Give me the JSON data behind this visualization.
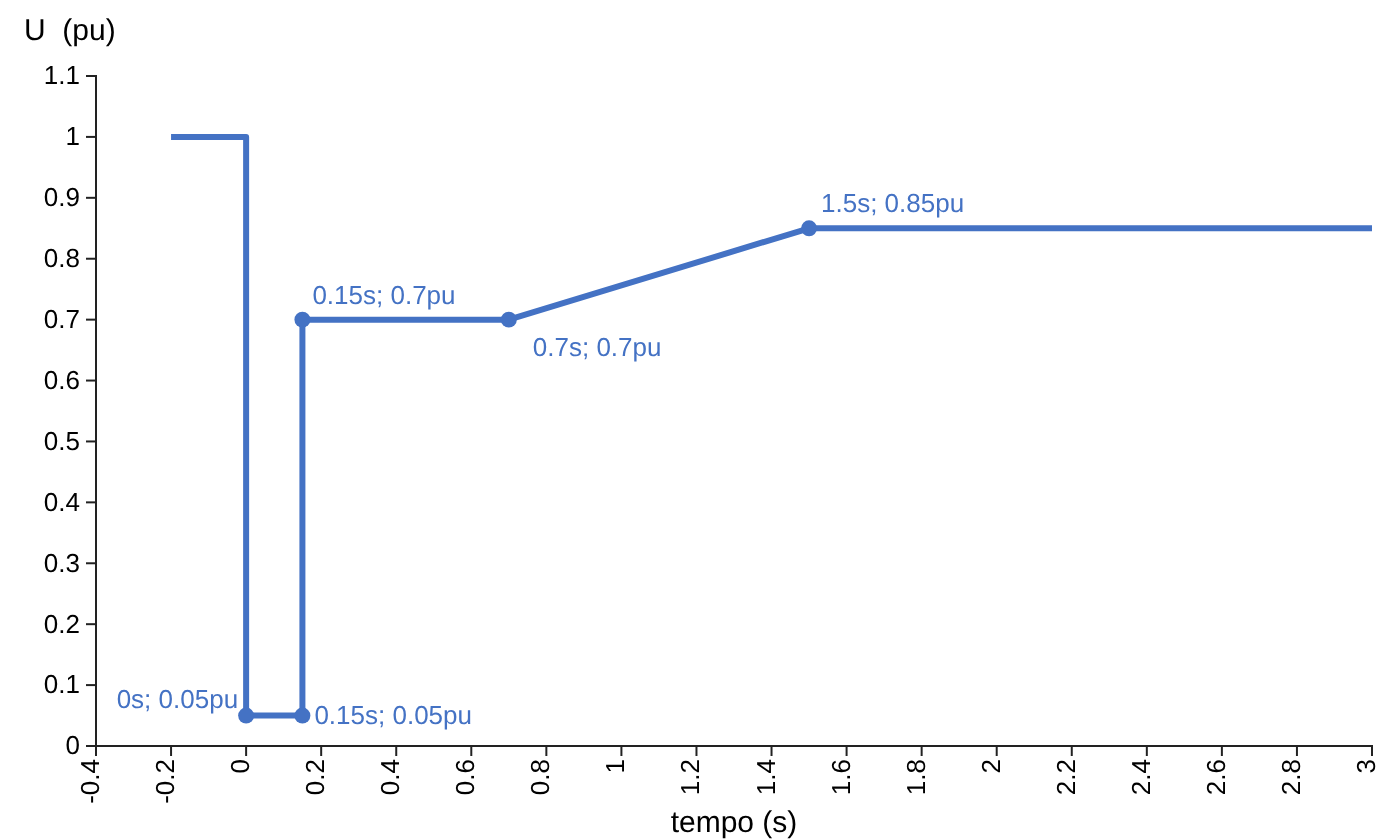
{
  "chart_data": {
    "type": "line",
    "xlabel": "tempo (s)",
    "ylabel": "U  (pu)",
    "xlim": [
      -0.4,
      3
    ],
    "xticks": [
      -0.4,
      -0.2,
      0,
      0.2,
      0.4,
      0.6,
      0.8,
      1,
      1.2,
      1.4,
      1.6,
      1.8,
      2,
      2.2,
      2.4,
      2.6,
      2.8,
      3
    ],
    "ylim": [
      0,
      1.1
    ],
    "yticks": [
      0,
      0.1,
      0.2,
      0.3,
      0.4,
      0.5,
      0.6,
      0.7,
      0.8,
      0.9,
      1,
      1.1
    ],
    "grid": false,
    "series": [
      {
        "color": "#4472c4",
        "marker": "none",
        "line_style": "solid",
        "x": [
          -0.2,
          0,
          0,
          0.15,
          0.15,
          0.7,
          1.5,
          3
        ],
        "values": [
          1,
          1,
          0.05,
          0.05,
          0.7,
          0.7,
          0.85,
          0.85
        ]
      },
      {
        "type": "scatter",
        "color": "#4472c4",
        "marker": "circle",
        "x": [
          0,
          0.15,
          0.15,
          0.7,
          1.5
        ],
        "values": [
          0.05,
          0.05,
          0.7,
          0.7,
          0.85
        ]
      }
    ],
    "annotations": [
      {
        "text": "0s; 0.05pu",
        "x": 0,
        "y": 0.05
      },
      {
        "text": "0.15s; 0.05pu",
        "x": 0.15,
        "y": 0.05
      },
      {
        "text": "0.15s; 0.7pu",
        "x": 0.15,
        "y": 0.7
      },
      {
        "text": "0.7s; 0.7pu",
        "x": 0.7,
        "y": 0.7
      },
      {
        "text": "1.5s; 0.85pu",
        "x": 1.5,
        "y": 0.85
      }
    ]
  }
}
